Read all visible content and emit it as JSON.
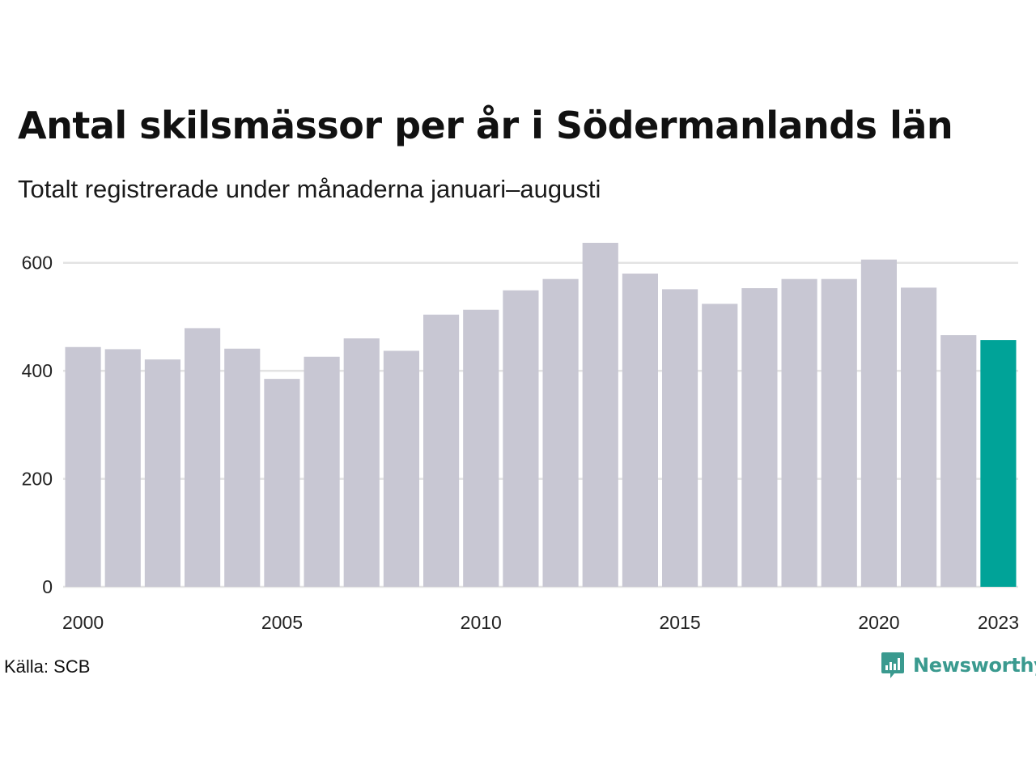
{
  "header": {
    "title": "Antal skilsmässor per år i Södermanlands län",
    "subtitle": "Totalt registrerade under månaderna januari–augusti"
  },
  "footer": {
    "source": "Källa: SCB",
    "brand": "Newsworthy"
  },
  "colors": {
    "bar": "#c8c7d3",
    "highlight": "#00a398",
    "grid": "#e3e3e3",
    "brand": "#3a9a8f"
  },
  "chart_data": {
    "type": "bar",
    "title": "Antal skilsmässor per år i Södermanlands län",
    "subtitle": "Totalt registrerade under månaderna januari–augusti",
    "xlabel": "",
    "ylabel": "",
    "categories": [
      2000,
      2001,
      2002,
      2003,
      2004,
      2005,
      2006,
      2007,
      2008,
      2009,
      2010,
      2011,
      2012,
      2013,
      2014,
      2015,
      2016,
      2017,
      2018,
      2019,
      2020,
      2021,
      2022,
      2023
    ],
    "values": [
      444,
      440,
      421,
      479,
      441,
      385,
      426,
      460,
      437,
      504,
      513,
      549,
      570,
      637,
      580,
      551,
      524,
      553,
      570,
      570,
      606,
      554,
      466,
      457
    ],
    "highlight_category": 2023,
    "ylim": [
      0,
      640
    ],
    "yticks": [
      0,
      200,
      400,
      600
    ],
    "xticks": [
      2000,
      2005,
      2010,
      2015,
      2020,
      2023
    ],
    "grid": "horizontal",
    "legend": "none"
  }
}
